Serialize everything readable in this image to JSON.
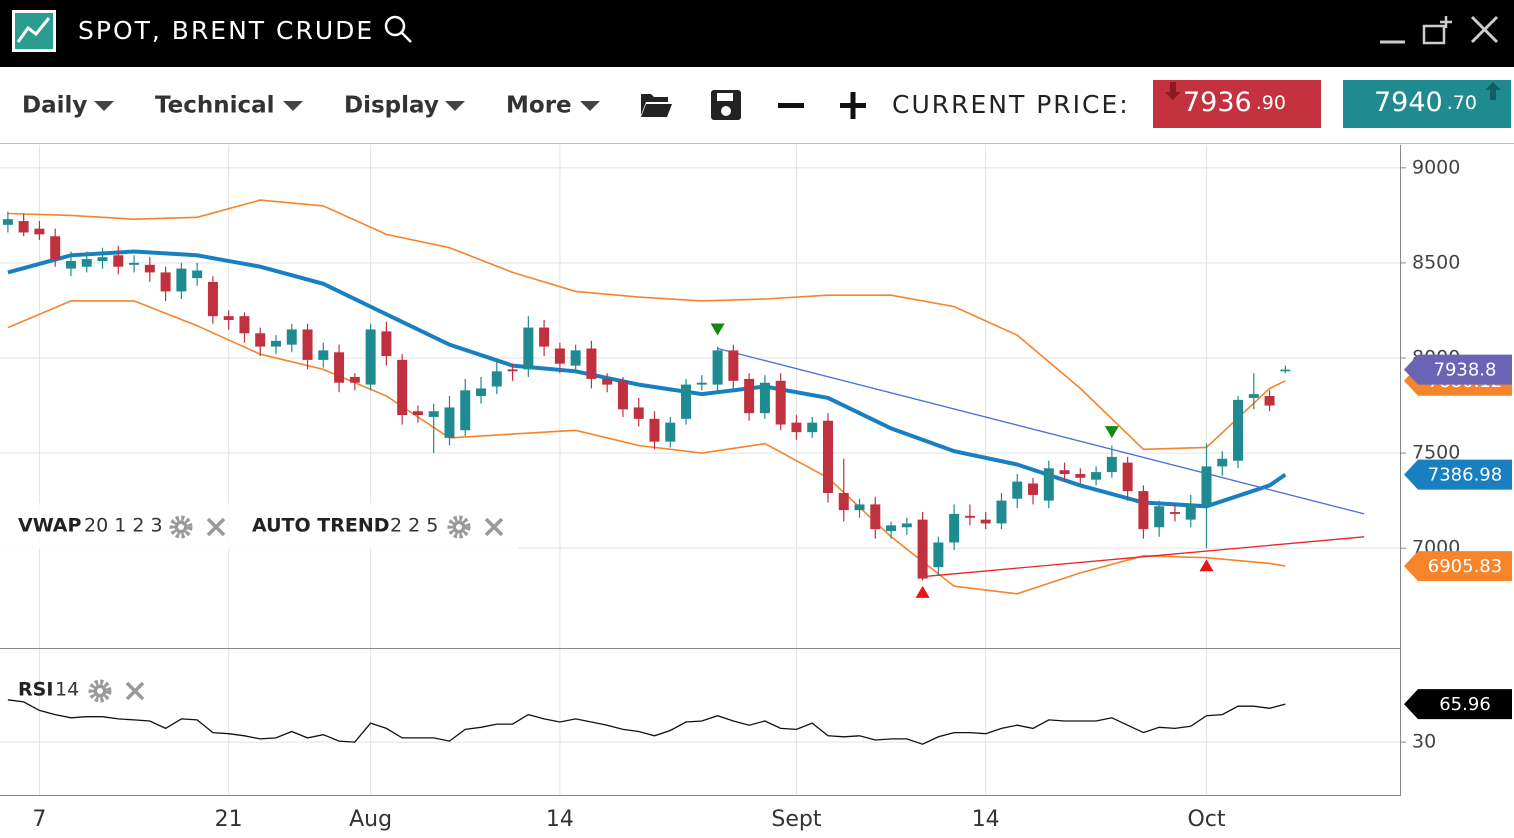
{
  "header": {
    "title": "SPOT, BRENT CRUDE"
  },
  "toolbar": {
    "menus": [
      "Daily",
      "Technical",
      "Display",
      "More"
    ],
    "current_price_label": "CURRENT PRICE:",
    "bid": {
      "whole": "7936",
      "fraction": ".90",
      "color": "#c4313f"
    },
    "ask": {
      "whole": "7940",
      "fraction": ".70",
      "color": "#1f8b91"
    }
  },
  "indicators": [
    {
      "name": "VWAP",
      "params": "20 1 2 3"
    },
    {
      "name": "AUTO TREND",
      "params": "2 2 5"
    }
  ],
  "chart_data": [
    {
      "type": "candlestick",
      "categories": [
        null,
        null,
        "7",
        null,
        null,
        null,
        null,
        null,
        null,
        null,
        null,
        null,
        null,
        null,
        "21",
        null,
        null,
        null,
        null,
        null,
        null,
        null,
        null,
        "Aug",
        null,
        null,
        null,
        null,
        null,
        null,
        null,
        null,
        null,
        null,
        null,
        "14",
        null,
        null,
        null,
        null,
        null,
        null,
        null,
        null,
        null,
        null,
        null,
        null,
        null,
        null,
        "Sept",
        null,
        null,
        null,
        null,
        null,
        null,
        null,
        null,
        null,
        null,
        null,
        "14",
        null,
        null,
        null,
        null,
        null,
        null,
        null,
        null,
        null,
        null,
        null,
        null,
        null,
        "Oct",
        null,
        null,
        null,
        null,
        null
      ],
      "open": [
        8700,
        8720,
        8680,
        8640,
        8470,
        8480,
        8510,
        8540,
        8490,
        8490,
        8450,
        8350,
        8420,
        8400,
        8220,
        8220,
        8130,
        8060,
        8070,
        8150,
        7990,
        8030,
        7900,
        7860,
        8140,
        7990,
        7720,
        7690,
        7580,
        7620,
        7800,
        7850,
        7940,
        7940,
        8160,
        8050,
        7960,
        8050,
        7890,
        7880,
        7740,
        7680,
        7560,
        7680,
        7860,
        7860,
        8040,
        7890,
        7710,
        7880,
        7660,
        7610,
        7670,
        7290,
        7200,
        7230,
        7090,
        7110,
        7150,
        6900,
        7030,
        7170,
        7150,
        7130,
        7260,
        7340,
        7250,
        7410,
        7390,
        7360,
        7400,
        7450,
        7300,
        7110,
        7190,
        7150,
        7230,
        7430,
        7460,
        7790,
        7800,
        7930
      ],
      "high": [
        8770,
        8760,
        8720,
        8680,
        8560,
        8560,
        8580,
        8590,
        8540,
        8530,
        8480,
        8500,
        8500,
        8430,
        8250,
        8240,
        8160,
        8120,
        8180,
        8180,
        8080,
        8070,
        7920,
        8180,
        8190,
        8020,
        7750,
        7760,
        7800,
        7890,
        7900,
        7990,
        7970,
        8220,
        8200,
        8080,
        8070,
        8090,
        7920,
        7900,
        7790,
        7720,
        7690,
        7890,
        7910,
        8060,
        8070,
        7920,
        7910,
        7920,
        7700,
        7690,
        7710,
        7470,
        7260,
        7270,
        7140,
        7160,
        7190,
        7060,
        7230,
        7230,
        7190,
        7290,
        7390,
        7370,
        7460,
        7450,
        7420,
        7430,
        7540,
        7480,
        7330,
        7250,
        7240,
        7280,
        7550,
        7510,
        7800,
        7920,
        7830,
        7960
      ],
      "low": [
        8660,
        8640,
        8620,
        8480,
        8430,
        8450,
        8470,
        8440,
        8450,
        8400,
        8300,
        8310,
        8380,
        8180,
        8150,
        8080,
        8010,
        8020,
        8030,
        7940,
        7950,
        7820,
        7830,
        7830,
        7960,
        7650,
        7660,
        7500,
        7540,
        7590,
        7760,
        7810,
        7880,
        7900,
        8010,
        7920,
        7920,
        7840,
        7820,
        7690,
        7640,
        7520,
        7530,
        7650,
        7830,
        7820,
        7840,
        7670,
        7680,
        7620,
        7570,
        7580,
        7240,
        7140,
        7160,
        7050,
        7050,
        7070,
        6830,
        6860,
        6990,
        7120,
        7100,
        7100,
        7210,
        7230,
        7210,
        7350,
        7340,
        7330,
        7370,
        7250,
        7050,
        7060,
        7140,
        7110,
        7000,
        7380,
        7420,
        7730,
        7720,
        7920
      ],
      "close": [
        8730,
        8660,
        8650,
        8520,
        8510,
        8520,
        8530,
        8480,
        8500,
        8450,
        8350,
        8470,
        8460,
        8220,
        8200,
        8130,
        8060,
        8090,
        8150,
        7990,
        8040,
        7870,
        7870,
        8150,
        8010,
        7700,
        7700,
        7720,
        7740,
        7830,
        7840,
        7930,
        7930,
        8160,
        8060,
        7970,
        8040,
        7890,
        7860,
        7730,
        7680,
        7560,
        7660,
        7860,
        7870,
        8040,
        7880,
        7710,
        7870,
        7650,
        7610,
        7660,
        7290,
        7200,
        7230,
        7100,
        7120,
        7130,
        6840,
        7030,
        7180,
        7160,
        7130,
        7250,
        7350,
        7280,
        7420,
        7390,
        7370,
        7400,
        7480,
        7300,
        7100,
        7220,
        7180,
        7230,
        7430,
        7470,
        7780,
        7810,
        7750,
        7938.8
      ],
      "up_color": "#1f8b91",
      "down_color": "#c0313f",
      "tag_color": "#6b63b5",
      "xlim": [
        -0.5,
        88.27
      ],
      "ylim": [
        6475,
        9120
      ],
      "yticks": [
        9000,
        8500,
        8000,
        7500,
        7000
      ],
      "grid": true,
      "overlays": [
        {
          "color": "#f5842a",
          "width": 1.6,
          "x": [
            0,
            4,
            8,
            12,
            16,
            20,
            24,
            28,
            32,
            36,
            40,
            44,
            48,
            52,
            56,
            60,
            64,
            68,
            72,
            76,
            80,
            81
          ],
          "values": [
            8760,
            8750,
            8730,
            8740,
            8830,
            8800,
            8650,
            8580,
            8450,
            8350,
            8320,
            8300,
            8310,
            8330,
            8330,
            8270,
            8120,
            7840,
            7520,
            7530,
            7840,
            7880.12
          ]
        },
        {
          "color": "#1a7fc1",
          "width": 4,
          "x": [
            0,
            4,
            8,
            12,
            16,
            20,
            24,
            28,
            32,
            36,
            40,
            44,
            48,
            52,
            56,
            60,
            64,
            68,
            72,
            76,
            80,
            81
          ],
          "values": [
            8450,
            8540,
            8560,
            8540,
            8480,
            8390,
            8230,
            8070,
            7960,
            7930,
            7860,
            7810,
            7850,
            7790,
            7630,
            7510,
            7440,
            7330,
            7240,
            7220,
            7330,
            7386.98
          ]
        },
        {
          "color": "#f5842a",
          "width": 1.6,
          "x": [
            0,
            4,
            8,
            12,
            16,
            20,
            24,
            28,
            32,
            36,
            40,
            44,
            48,
            52,
            56,
            60,
            64,
            68,
            72,
            76,
            80,
            81
          ],
          "values": [
            8160,
            8300,
            8300,
            8170,
            8020,
            7940,
            7800,
            7580,
            7600,
            7620,
            7540,
            7500,
            7550,
            7370,
            7060,
            6800,
            6760,
            6870,
            6960,
            6950,
            6920,
            6905.83
          ]
        }
      ],
      "trend_lines": [
        {
          "color": "#4a6fd6",
          "x": [
            45,
            86
          ],
          "values": [
            8050,
            7180
          ]
        },
        {
          "color": "#e8242a",
          "x": [
            58,
            86
          ],
          "values": [
            6850,
            7060
          ]
        }
      ],
      "signals": [
        {
          "x": 45,
          "value": 8150,
          "direction": "down",
          "color": "#118a11"
        },
        {
          "x": 70,
          "value": 7610,
          "direction": "down",
          "color": "#118a11"
        },
        {
          "x": 58,
          "value": 6770,
          "direction": "up",
          "color": "#e8141a"
        },
        {
          "x": 76,
          "value": 6910,
          "direction": "up",
          "color": "#e8141a"
        }
      ]
    },
    {
      "type": "line",
      "indicator": {
        "name": "RSI",
        "params": "14"
      },
      "values": [
        70,
        68,
        60,
        56,
        53,
        54,
        54,
        52,
        51,
        50,
        43,
        52,
        51,
        39,
        38,
        36,
        33,
        34,
        40,
        34,
        37,
        31,
        30,
        48,
        43,
        34,
        34,
        34,
        31,
        42,
        44,
        47,
        47,
        56,
        52,
        49,
        52,
        49,
        46,
        42,
        40,
        36,
        41,
        49,
        50,
        55,
        50,
        46,
        50,
        43,
        42,
        48,
        36,
        35,
        36,
        32,
        33,
        33,
        28,
        35,
        39,
        39,
        38,
        43,
        46,
        43,
        51,
        50,
        50,
        50,
        53,
        46,
        39,
        44,
        43,
        45,
        55,
        56,
        64,
        64,
        62,
        65.96
      ],
      "color": "#111111",
      "tag_color": "#000000",
      "xlim": [
        -0.5,
        88.27
      ],
      "ylim": [
        -20,
        119
      ],
      "yticks": [
        30
      ],
      "grid": true
    }
  ]
}
